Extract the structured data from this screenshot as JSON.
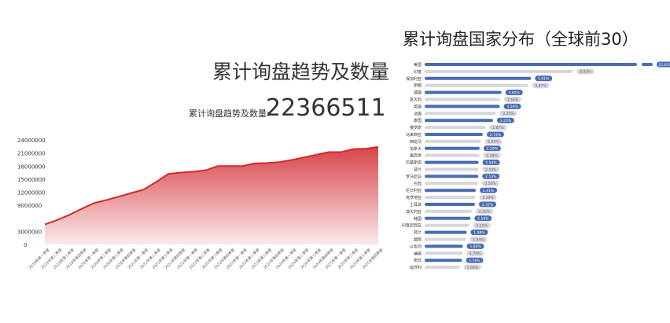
{
  "left": {
    "title": "累计询盘趋势及数量",
    "subtitle_label": "累计询盘趋势及数量:",
    "total": "22366511"
  },
  "right": {
    "title": "累计询盘国家分布（全球前30）"
  },
  "chart_data": [
    {
      "type": "area",
      "title": "累计询盘趋势及数量",
      "ylim": [
        0,
        24000000
      ],
      "yticks": [
        "24000000",
        "21000000",
        "18000000",
        "15000000",
        "12000000",
        "9000000",
        "3000000",
        "0"
      ],
      "ytick_values": [
        24000000,
        21000000,
        18000000,
        15000000,
        12000000,
        9000000,
        3000000,
        0
      ],
      "categories": [
        "2019年第一季度",
        "2019年第二季度",
        "2019年第三季度",
        "2019年第四季度",
        "2020年第一季度",
        "2020年第二季度",
        "2020年第三季度",
        "2020年第四季度",
        "2021年第一季度",
        "2021年第二季度",
        "2021年第三季度",
        "2021年第四季度",
        "2022年第一季度",
        "2022年第二季度",
        "2022年第三季度",
        "2022年第四季度",
        "2023年第一季度",
        "2023年第二季度",
        "2023年第三季度",
        "2023年第四季度",
        "2024年第一季度",
        "2024年第二季度",
        "2024年第三季度",
        "2024年第四季度",
        "2025年第一季度",
        "2025年第二季度",
        "2025年第三季度",
        "2025年第四季度"
      ],
      "values": [
        4600000,
        5600000,
        6800000,
        8200000,
        9500000,
        10200000,
        11000000,
        11800000,
        12600000,
        14300000,
        16200000,
        16500000,
        16700000,
        17000000,
        18000000,
        18000000,
        18000000,
        18600000,
        18700000,
        18900000,
        19400000,
        20000000,
        20600000,
        21200000,
        21200000,
        21900000,
        22000000,
        22366511
      ],
      "colors": {
        "line": "#d42a2a",
        "fill_top": "#d7444a",
        "fill_bottom": "#fbe9ea"
      }
    },
    {
      "type": "bar",
      "orientation": "horizontal",
      "title": "累计询盘国家分布（全球前30）",
      "categories": [
        "美国",
        "印度",
        "保加利亚",
        "伊朗",
        "德国",
        "意大利",
        "英国",
        "法国",
        "泰国",
        "俄罗斯",
        "马来西亚",
        "西班牙",
        "加拿大",
        "墨西哥",
        "巴基斯坦",
        "波兰",
        "罗马尼亚",
        "巴西",
        "尼日利亚",
        "克罗地亚",
        "土耳其",
        "澳大利亚",
        "韩国",
        "印度尼西亚",
        "荷兰",
        "越南",
        "以色列",
        "瑞典",
        "南非",
        "匈牙利"
      ],
      "values": [
        15.63,
        8.93,
        5.01,
        4.87,
        3.62,
        3.55,
        3.54,
        3.35,
        3.22,
        2.87,
        2.74,
        2.65,
        2.59,
        2.58,
        2.54,
        2.53,
        2.53,
        2.5,
        2.41,
        2.39,
        2.37,
        2.22,
        2.16,
        2.1,
        1.98,
        1.94,
        1.8,
        1.79,
        1.76,
        1.66
      ],
      "labels": [
        "15.63%",
        "8.93%",
        "5.01%",
        "4.87%",
        "3.62%",
        "3.55%",
        "3.54%",
        "3.35%",
        "3.22%",
        "2.87%",
        "2.74%",
        "2.65%",
        "2.59%",
        "2.58%",
        "2.54%",
        "2.53%",
        "2.53%",
        "2.50%",
        "2.41%",
        "2.39%",
        "2.37%",
        "2.22%",
        "2.16%",
        "2.10%",
        "1.98%",
        "1.94%",
        "1.80%",
        "1.79%",
        "1.76%",
        "1.66%"
      ],
      "colors": {
        "primary": "#4a6cb3",
        "secondary": "#d6d6dc"
      }
    }
  ]
}
